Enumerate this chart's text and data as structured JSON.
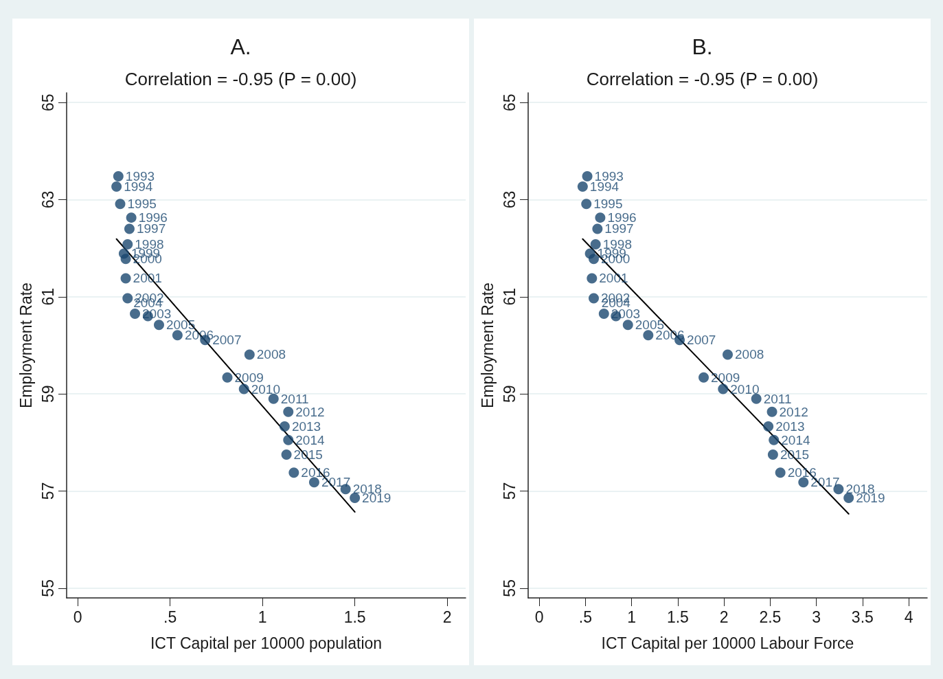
{
  "chart_data": [
    {
      "type": "scatter",
      "title": "A.",
      "subtitle": "Correlation = -0.95 (P = 0.00)",
      "xlabel": "ICT Capital per 10000 population",
      "ylabel": "Employment Rate",
      "xlim": [
        -0.06,
        2.1
      ],
      "ylim": [
        54.8,
        65.2
      ],
      "xticks": [
        0,
        {
          "value": 0.5,
          "label": ".5"
        },
        1,
        1.5,
        2
      ],
      "yticks": [
        55,
        57,
        59,
        61,
        63,
        65
      ],
      "grid": "y",
      "marker": "circle",
      "series": [
        {
          "type": "scatter",
          "color": "#1a476f",
          "x": [
            0.22,
            0.21,
            0.23,
            0.29,
            0.28,
            0.27,
            0.25,
            0.26,
            0.26,
            0.27,
            0.31,
            0.38,
            0.44,
            0.54,
            0.69,
            0.93,
            0.81,
            0.9,
            1.06,
            1.14,
            1.12,
            1.14,
            1.13,
            1.17,
            1.28,
            1.45,
            1.5
          ],
          "values": [
            63.48,
            63.27,
            62.91,
            62.63,
            62.4,
            62.08,
            61.89,
            61.78,
            61.38,
            60.97,
            60.65,
            60.6,
            60.42,
            60.21,
            60.11,
            59.81,
            59.34,
            59.1,
            58.9,
            58.63,
            58.33,
            58.05,
            57.75,
            57.38,
            57.18,
            57.04,
            56.86
          ]
        },
        {
          "type": "line",
          "color": "#000000",
          "marker": "none",
          "line_style": "solid",
          "x": [
            0.21,
            1.5
          ],
          "values": [
            62.19,
            56.57
          ]
        }
      ],
      "annotations": [
        {
          "text": "1993",
          "x": 0.22,
          "y": 63.48
        },
        {
          "text": "1994",
          "x": 0.21,
          "y": 63.27
        },
        {
          "text": "1995",
          "x": 0.23,
          "y": 62.91
        },
        {
          "text": "1996",
          "x": 0.29,
          "y": 62.63
        },
        {
          "text": "1997",
          "x": 0.28,
          "y": 62.4
        },
        {
          "text": "1998",
          "x": 0.27,
          "y": 62.08
        },
        {
          "text": "1999",
          "x": 0.25,
          "y": 61.89
        },
        {
          "text": "2000",
          "x": 0.26,
          "y": 61.78
        },
        {
          "text": "2001",
          "x": 0.26,
          "y": 61.38
        },
        {
          "text": "2002",
          "x": 0.27,
          "y": 60.97
        },
        {
          "text": "2003",
          "x": 0.31,
          "y": 60.65
        },
        {
          "text": "2004",
          "x": 0.38,
          "y": 60.6
        },
        {
          "text": "2005",
          "x": 0.44,
          "y": 60.42
        },
        {
          "text": "2006",
          "x": 0.54,
          "y": 60.21
        },
        {
          "text": "2007",
          "x": 0.69,
          "y": 60.11
        },
        {
          "text": "2008",
          "x": 0.93,
          "y": 59.81
        },
        {
          "text": "2009",
          "x": 0.81,
          "y": 59.34
        },
        {
          "text": "2010",
          "x": 0.9,
          "y": 59.1
        },
        {
          "text": "2011",
          "x": 1.06,
          "y": 58.9
        },
        {
          "text": "2012",
          "x": 1.14,
          "y": 58.63
        },
        {
          "text": "2013",
          "x": 1.12,
          "y": 58.33
        },
        {
          "text": "2014",
          "x": 1.14,
          "y": 58.05
        },
        {
          "text": "2015",
          "x": 1.13,
          "y": 57.75
        },
        {
          "text": "2016",
          "x": 1.17,
          "y": 57.38
        },
        {
          "text": "2017",
          "x": 1.28,
          "y": 57.18
        },
        {
          "text": "2018",
          "x": 1.45,
          "y": 57.04
        },
        {
          "text": "2019",
          "x": 1.5,
          "y": 56.86
        }
      ]
    },
    {
      "type": "scatter",
      "title": "B.",
      "subtitle": "Correlation = -0.95 (P = 0.00)",
      "xlabel": "ICT Capital per 10000 Labour Force",
      "ylabel": "Employment Rate",
      "xlim": [
        -0.12,
        4.2
      ],
      "ylim": [
        54.8,
        65.2
      ],
      "xticks": [
        0,
        {
          "value": 0.5,
          "label": ".5"
        },
        1,
        1.5,
        2,
        2.5,
        3,
        3.5,
        4
      ],
      "yticks": [
        55,
        57,
        59,
        61,
        63,
        65
      ],
      "grid": "y",
      "marker": "circle",
      "series": [
        {
          "type": "scatter",
          "color": "#1a476f",
          "x": [
            0.52,
            0.47,
            0.51,
            0.66,
            0.63,
            0.61,
            0.55,
            0.59,
            0.57,
            0.59,
            0.7,
            0.83,
            0.96,
            1.18,
            1.52,
            2.04,
            1.78,
            1.99,
            2.35,
            2.52,
            2.48,
            2.54,
            2.53,
            2.61,
            2.86,
            3.24,
            3.35
          ],
          "values": [
            63.48,
            63.27,
            62.91,
            62.63,
            62.4,
            62.08,
            61.89,
            61.78,
            61.38,
            60.97,
            60.65,
            60.6,
            60.42,
            60.21,
            60.11,
            59.81,
            59.34,
            59.1,
            58.9,
            58.63,
            58.33,
            58.05,
            57.75,
            57.38,
            57.18,
            57.04,
            56.86
          ]
        },
        {
          "type": "line",
          "color": "#000000",
          "marker": "none",
          "line_style": "solid",
          "x": [
            0.47,
            3.35
          ],
          "values": [
            62.19,
            56.53
          ]
        }
      ],
      "annotations": [
        {
          "text": "1993",
          "x": 0.52,
          "y": 63.48
        },
        {
          "text": "1994",
          "x": 0.47,
          "y": 63.27
        },
        {
          "text": "1995",
          "x": 0.51,
          "y": 62.91
        },
        {
          "text": "1996",
          "x": 0.66,
          "y": 62.63
        },
        {
          "text": "1997",
          "x": 0.63,
          "y": 62.4
        },
        {
          "text": "1998",
          "x": 0.61,
          "y": 62.08
        },
        {
          "text": "1999",
          "x": 0.55,
          "y": 61.89
        },
        {
          "text": "2000",
          "x": 0.59,
          "y": 61.78
        },
        {
          "text": "2001",
          "x": 0.57,
          "y": 61.38
        },
        {
          "text": "2002",
          "x": 0.59,
          "y": 60.97
        },
        {
          "text": "2003",
          "x": 0.7,
          "y": 60.65
        },
        {
          "text": "2004",
          "x": 0.83,
          "y": 60.6
        },
        {
          "text": "2005",
          "x": 0.96,
          "y": 60.42
        },
        {
          "text": "2006",
          "x": 1.18,
          "y": 60.21
        },
        {
          "text": "2007",
          "x": 1.52,
          "y": 60.11
        },
        {
          "text": "2008",
          "x": 2.04,
          "y": 59.81
        },
        {
          "text": "2009",
          "x": 1.78,
          "y": 59.34
        },
        {
          "text": "2010",
          "x": 1.99,
          "y": 59.1
        },
        {
          "text": "2011",
          "x": 2.35,
          "y": 58.9
        },
        {
          "text": "2012",
          "x": 2.52,
          "y": 58.63
        },
        {
          "text": "2013",
          "x": 2.48,
          "y": 58.33
        },
        {
          "text": "2014",
          "x": 2.54,
          "y": 58.05
        },
        {
          "text": "2015",
          "x": 2.53,
          "y": 57.75
        },
        {
          "text": "2016",
          "x": 2.61,
          "y": 57.38
        },
        {
          "text": "2017",
          "x": 2.86,
          "y": 57.18
        },
        {
          "text": "2018",
          "x": 3.24,
          "y": 57.04
        },
        {
          "text": "2019",
          "x": 3.35,
          "y": 56.86
        }
      ]
    }
  ]
}
